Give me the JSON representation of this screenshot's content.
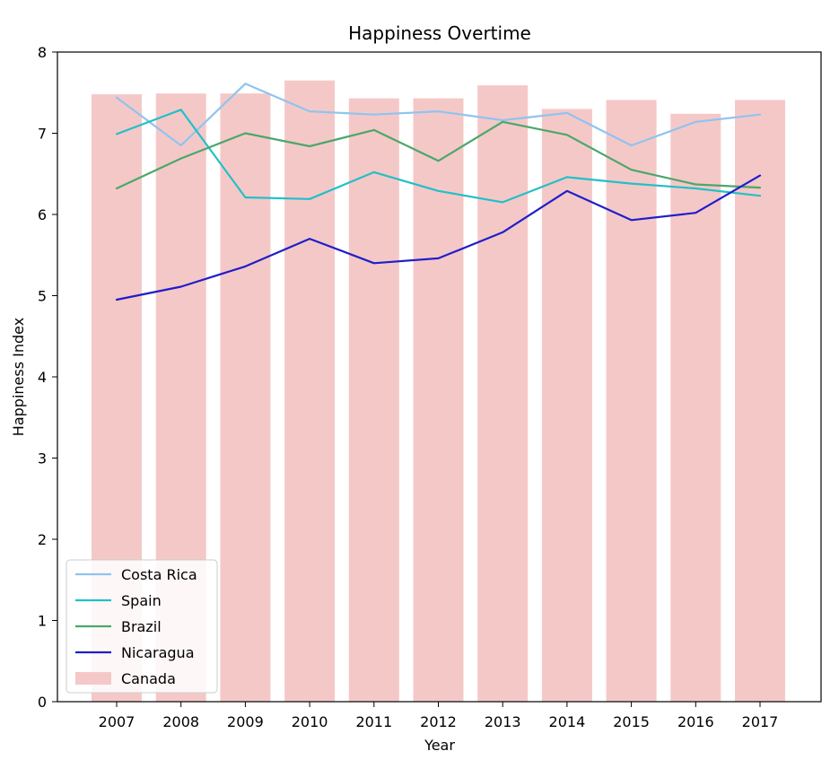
{
  "chart_data": {
    "type": "bar",
    "title": "Happiness Overtime",
    "xlabel": "Year",
    "ylabel": "Happiness Index",
    "ylim": [
      0,
      8
    ],
    "yticks": [
      0,
      1,
      2,
      3,
      4,
      5,
      6,
      7,
      8
    ],
    "grid": false,
    "legend_position": "lower-left",
    "categories": [
      "2007",
      "2008",
      "2009",
      "2010",
      "2011",
      "2012",
      "2013",
      "2014",
      "2015",
      "2016",
      "2017"
    ],
    "bars": {
      "name": "Canada",
      "color": "#f5c8c8",
      "values": [
        7.48,
        7.49,
        7.49,
        7.65,
        7.43,
        7.43,
        7.59,
        7.3,
        7.41,
        7.24,
        7.41
      ]
    },
    "series": [
      {
        "name": "Costa Rica",
        "color": "#8fc4ef",
        "values": [
          7.44,
          6.85,
          7.61,
          7.27,
          7.23,
          7.27,
          7.16,
          7.25,
          6.85,
          7.14,
          7.23
        ]
      },
      {
        "name": "Spain",
        "color": "#22c0c8",
        "values": [
          6.99,
          7.29,
          6.21,
          6.19,
          6.52,
          6.29,
          6.15,
          6.46,
          6.38,
          6.32,
          6.23
        ]
      },
      {
        "name": "Brazil",
        "color": "#4aa86a",
        "values": [
          6.32,
          6.69,
          7.0,
          6.84,
          7.04,
          6.66,
          7.14,
          6.98,
          6.55,
          6.37,
          6.33
        ]
      },
      {
        "name": "Nicaragua",
        "color": "#1f1fc8",
        "values": [
          4.95,
          5.11,
          5.36,
          5.7,
          5.4,
          5.46,
          5.78,
          6.29,
          5.93,
          6.02,
          6.48
        ]
      }
    ]
  }
}
